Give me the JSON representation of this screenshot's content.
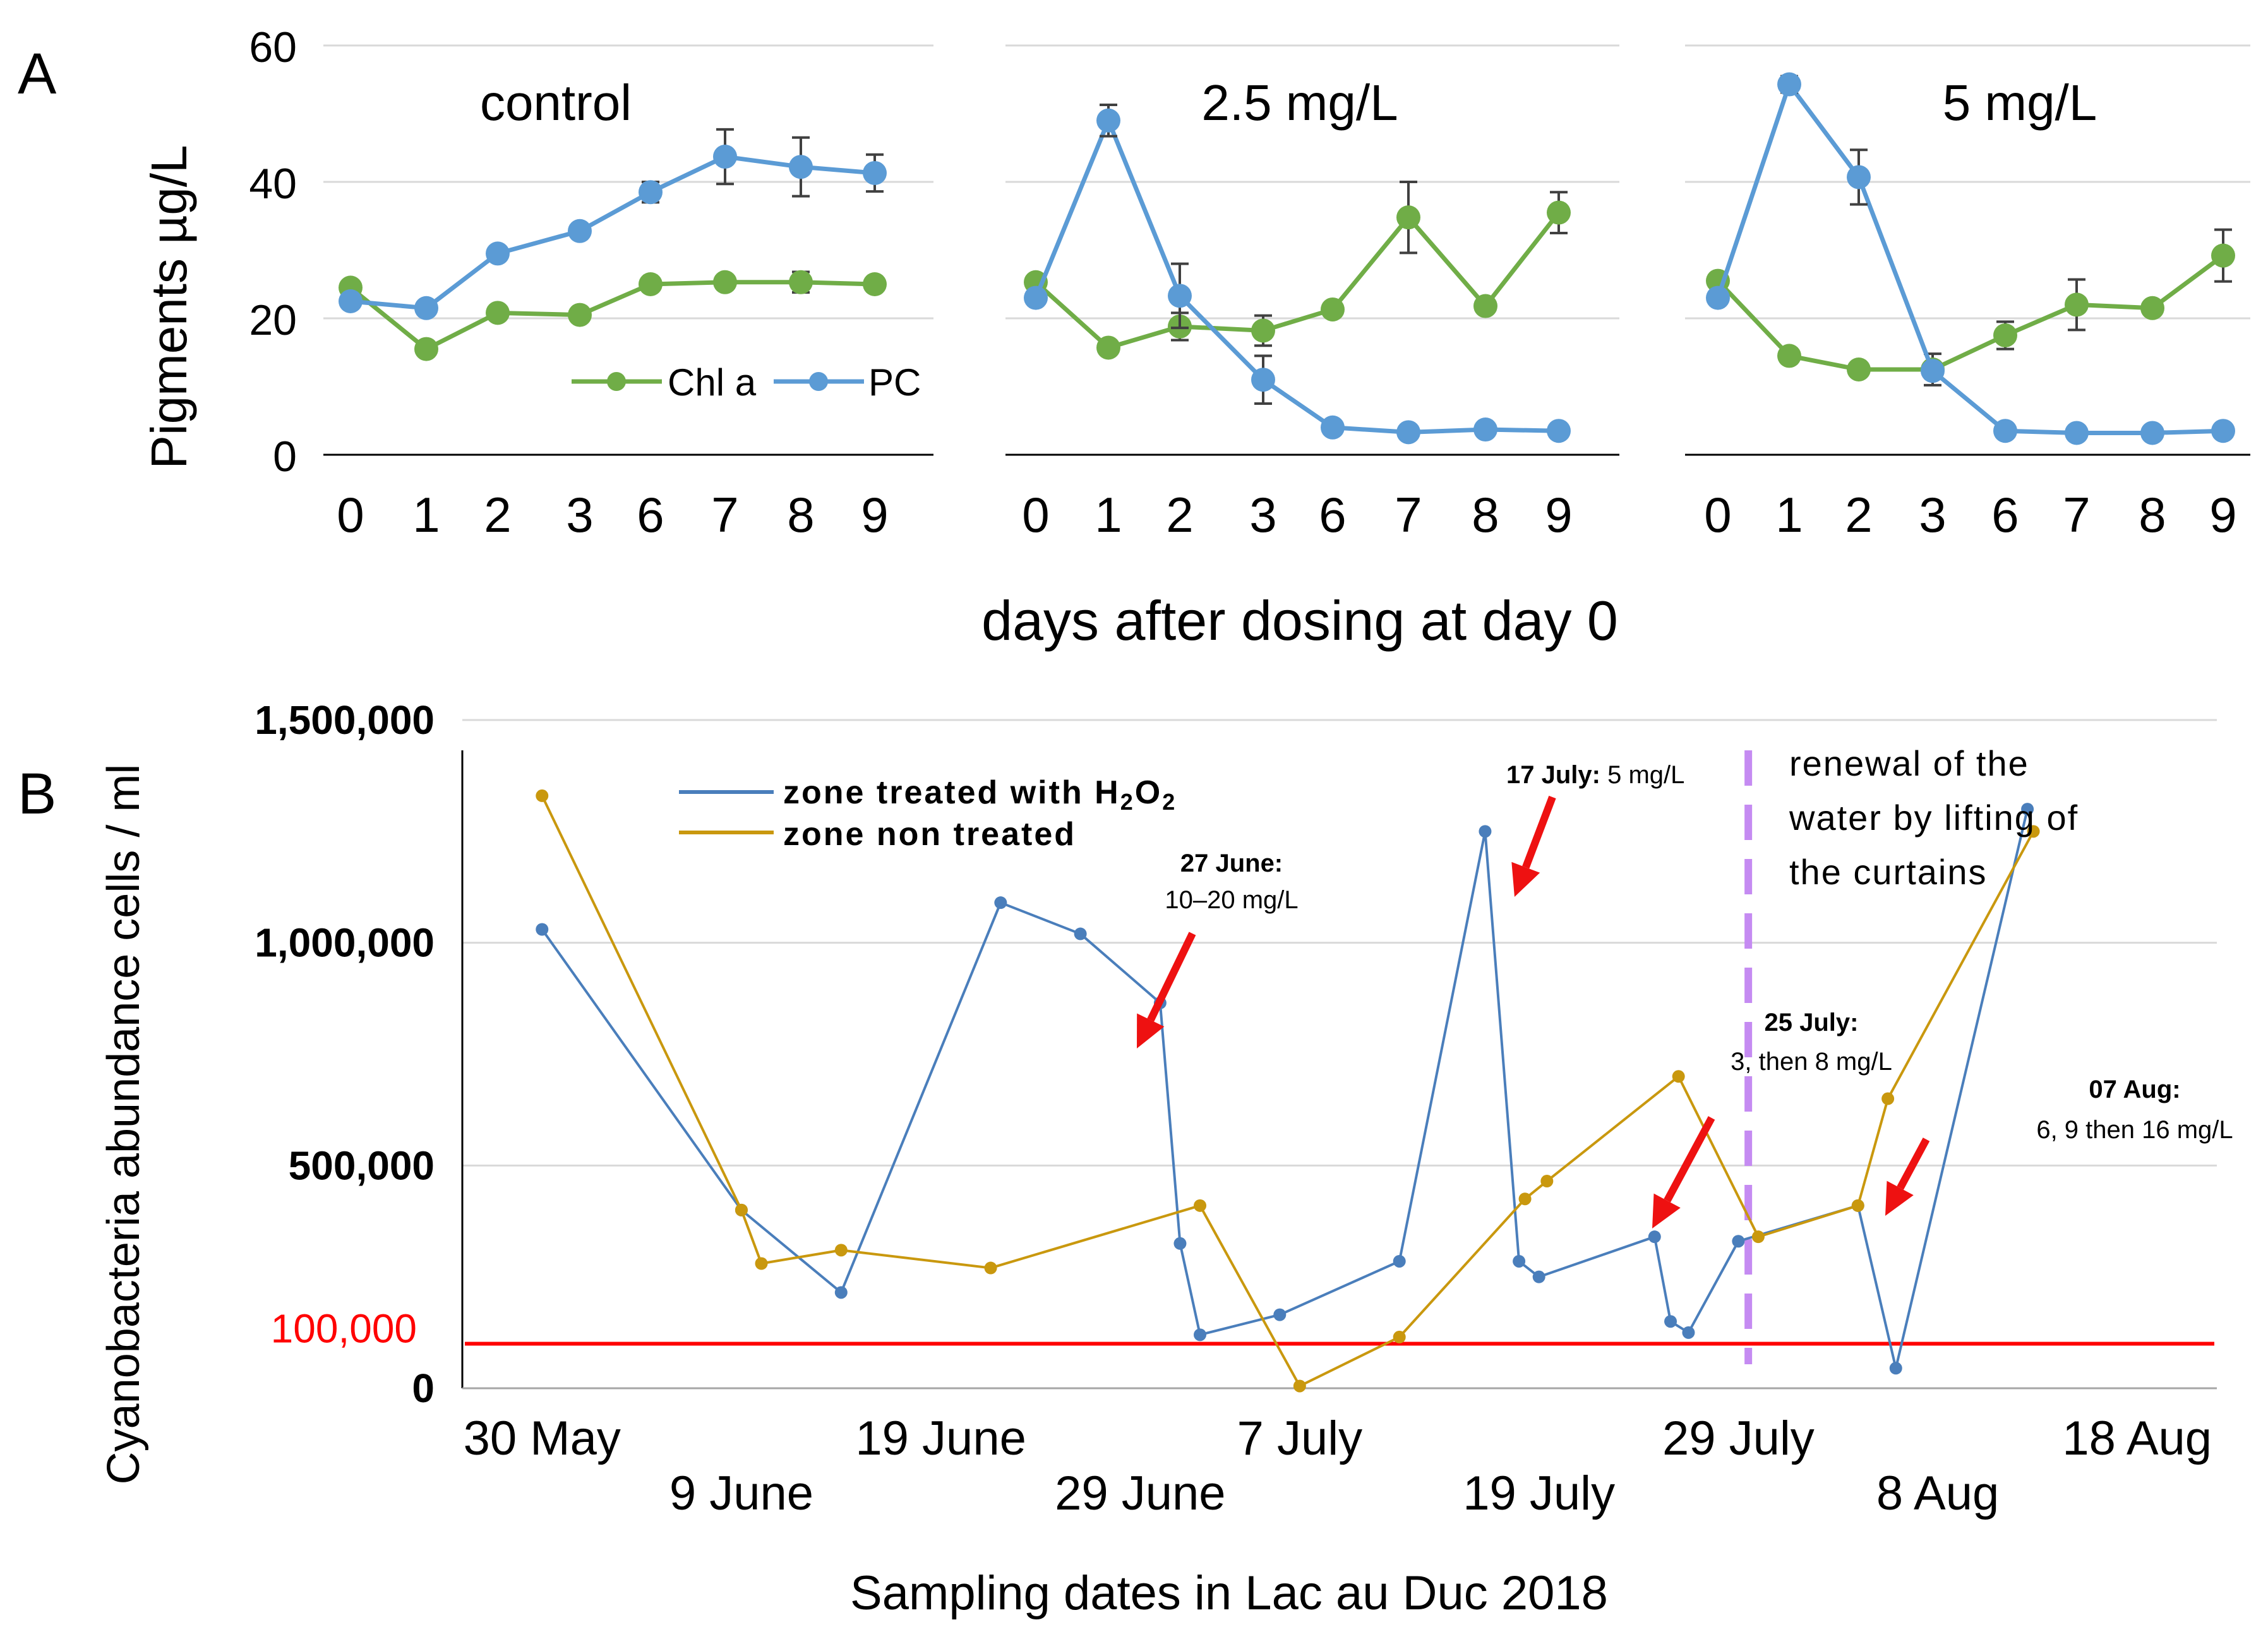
{
  "colors": {
    "chl": "#70AD47",
    "pc": "#5B9BD5",
    "treated": "#4A7EBB",
    "untreated": "#C9980E",
    "threshold": "#FF0000",
    "renewal": "#C58BF2",
    "arrow": "#EE1111",
    "grid": "#D9D9D9",
    "axis": "#000000",
    "errbar": "#404040"
  },
  "panel_labels": {
    "a": "A",
    "b": "B"
  },
  "legend_a": {
    "chl": "Chl a",
    "pc": "PC"
  },
  "legend_b": {
    "treated_prefix": "zone treated with H",
    "treated_sub1": "2",
    "treated_mid": "O",
    "treated_sub2": "2",
    "untreated": "zone non treated"
  },
  "annotations": {
    "june27_date": "27 June:",
    "june27_dose": "10–20 mg/L",
    "july17_date": "17 July:",
    "july17_dose": " 5 mg/L",
    "renewal_line1": "renewal of the",
    "renewal_line2": "water by lifting of",
    "renewal_line3": "the curtains",
    "july25_date": "25 July:",
    "july25_dose": "3, then 8 mg/L",
    "aug07_date": "07 Aug:",
    "aug07_dose": "6, 9 then 16 mg/L"
  },
  "chart_data": [
    {
      "type": "line",
      "title": "control",
      "x": [
        "0",
        "1",
        "2",
        "3",
        "6",
        "7",
        "8",
        "9"
      ],
      "ylabel": "Pigments µg/L",
      "xlabel": "days after dosing at day 0",
      "ylim": [
        0,
        60
      ],
      "yticks": [
        "0",
        "20",
        "40",
        "60"
      ],
      "series": [
        {
          "name": "Chl a",
          "values": [
            24.5,
            15.5,
            20.8,
            20.5,
            25,
            25.3,
            25.3,
            25
          ],
          "errors": [
            0,
            0,
            0,
            0,
            0,
            0.8,
            1.5,
            0
          ]
        },
        {
          "name": "PC",
          "values": [
            22.5,
            21.5,
            29.5,
            32.8,
            38.5,
            43.7,
            42.2,
            41.3
          ],
          "errors": [
            0,
            0,
            0,
            0,
            1.5,
            4,
            4.3,
            2.7
          ]
        }
      ]
    },
    {
      "type": "line",
      "title": "2.5 mg/L",
      "x": [
        "0",
        "1",
        "2",
        "3",
        "6",
        "7",
        "8",
        "9"
      ],
      "ylim": [
        0,
        60
      ],
      "series": [
        {
          "name": "Chl a",
          "values": [
            25.3,
            15.7,
            18.8,
            18.2,
            21.3,
            34.8,
            21.8,
            35.5
          ],
          "errors": [
            0,
            0,
            2,
            2.2,
            0,
            5.2,
            0,
            3
          ]
        },
        {
          "name": "PC",
          "values": [
            23,
            49,
            23.3,
            11,
            4,
            3.3,
            3.7,
            3.5
          ],
          "errors": [
            0,
            2.3,
            4.7,
            3.5,
            0,
            0,
            0,
            0
          ]
        }
      ]
    },
    {
      "type": "line",
      "title": "5 mg/L",
      "x": [
        "0",
        "1",
        "2",
        "3",
        "6",
        "7",
        "8",
        "9"
      ],
      "ylim": [
        0,
        60
      ],
      "series": [
        {
          "name": "Chl a",
          "values": [
            25.5,
            14.5,
            12.5,
            12.5,
            17.5,
            22,
            21.5,
            29.2
          ],
          "errors": [
            0,
            0,
            0,
            2.3,
            2,
            3.7,
            0,
            3.8
          ]
        },
        {
          "name": "PC",
          "values": [
            23,
            54.3,
            40.7,
            12.3,
            3.5,
            3.2,
            3.2,
            3.5
          ],
          "errors": [
            0,
            1.2,
            4,
            0,
            0,
            0,
            0,
            0
          ]
        }
      ]
    },
    {
      "type": "line",
      "title": "",
      "xlabel": "Sampling dates in Lac au Duc 2018",
      "ylabel": "Cyanobacteria abundance cells / ml",
      "ylim": [
        0,
        1500000
      ],
      "yticks": [
        "0",
        "500,000",
        "1,000,000",
        "1,500,000"
      ],
      "threshold_label": "100,000",
      "threshold_value": 100000,
      "xlim_day": [
        -4,
        84
      ],
      "x_tick_labels": [
        {
          "label": "30 May",
          "day": 0
        },
        {
          "label": "9 June",
          "day": 10
        },
        {
          "label": "19 June",
          "day": 20
        },
        {
          "label": "29 June",
          "day": 30
        },
        {
          "label": "7 July",
          "day": 38
        },
        {
          "label": "19 July",
          "day": 50
        },
        {
          "label": "29 July",
          "day": 60
        },
        {
          "label": "8 Aug",
          "day": 70
        },
        {
          "label": "18 Aug",
          "day": 80
        }
      ],
      "renewal_day": 60.5,
      "series": [
        {
          "name": "zone treated with H2O2",
          "points": [
            [
              0,
              1030000
            ],
            [
              10,
              400000
            ],
            [
              15,
              215000
            ],
            [
              23,
              1090000
            ],
            [
              27,
              1020000
            ],
            [
              31,
              865000
            ],
            [
              32,
              325000
            ],
            [
              33,
              120000
            ],
            [
              37,
              165000
            ],
            [
              43,
              285000
            ],
            [
              47.3,
              1250000
            ],
            [
              49,
              285000
            ],
            [
              50,
              250000
            ],
            [
              55.8,
              340000
            ],
            [
              56.6,
              150000
            ],
            [
              57.5,
              125000
            ],
            [
              60,
              330000
            ],
            [
              66,
              410000
            ],
            [
              67.9,
              45000
            ],
            [
              74.5,
              1300000
            ]
          ]
        },
        {
          "name": "zone non treated",
          "points": [
            [
              0,
              1330000
            ],
            [
              10,
              400000
            ],
            [
              11,
              280000
            ],
            [
              15,
              310000
            ],
            [
              22.5,
              270000
            ],
            [
              33,
              410000
            ],
            [
              38,
              5000
            ],
            [
              43,
              115000
            ],
            [
              49.3,
              425000
            ],
            [
              50.4,
              465000
            ],
            [
              57,
              700000
            ],
            [
              61,
              340000
            ],
            [
              66,
              410000
            ],
            [
              67.5,
              650000
            ],
            [
              74.8,
              1250000
            ]
          ]
        }
      ]
    }
  ]
}
